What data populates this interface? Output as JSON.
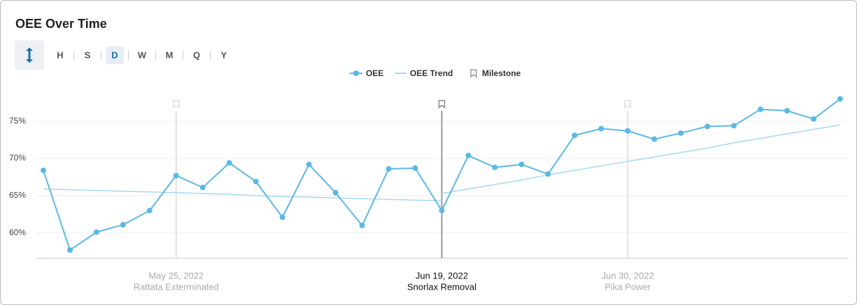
{
  "controls": {
    "timescales": [
      "H",
      "S",
      "D",
      "W",
      "M",
      "Q",
      "Y"
    ],
    "active": "D"
  },
  "chart_data": {
    "type": "line",
    "title": "OEE Over Time",
    "categories": [
      null,
      null,
      null,
      null,
      null,
      "May 25, 2022",
      null,
      null,
      null,
      null,
      null,
      null,
      null,
      null,
      null,
      "Jun 19, 2022",
      null,
      null,
      null,
      null,
      null,
      null,
      "Jun 30, 2022",
      null,
      null,
      null,
      null,
      null,
      null,
      null,
      null
    ],
    "series": [
      {
        "name": "OEE",
        "color": "#5bb8e4",
        "values": [
          68.4,
          57.7,
          60.1,
          61.1,
          63.0,
          67.7,
          66.1,
          69.4,
          66.9,
          62.1,
          69.2,
          65.4,
          61.0,
          68.6,
          68.7,
          63.0,
          70.4,
          68.8,
          69.2,
          67.9,
          73.1,
          74.0,
          73.7,
          72.6,
          73.4,
          74.3,
          74.4,
          76.6,
          76.4,
          75.3,
          78.0
        ]
      },
      {
        "name": "OEE Trend",
        "color": "#a6d9ef",
        "pieces": [
          [
            65.9,
            65.8,
            65.7,
            65.6,
            65.5,
            65.4,
            65.3,
            65.2,
            65.0,
            64.9,
            64.8,
            64.7,
            64.6,
            64.5,
            64.4,
            64.3,
            null,
            null,
            null,
            null,
            null,
            null,
            null,
            null,
            null,
            null,
            null,
            null,
            null,
            null,
            null
          ],
          [
            null,
            null,
            null,
            null,
            null,
            null,
            null,
            null,
            null,
            null,
            null,
            null,
            null,
            null,
            null,
            65.3,
            65.9,
            66.5,
            67.1,
            67.8,
            68.4,
            69.0,
            69.6,
            70.2,
            70.8,
            71.4,
            72.1,
            72.7,
            73.3,
            73.9,
            74.5
          ]
        ]
      }
    ],
    "milestone_legend": "Milestone",
    "milestones": [
      {
        "date": "May 25, 2022",
        "name": "Rattata Exterminated"
      },
      {
        "date": "Jun 19, 2022",
        "name": "Snorlax Removal",
        "selected": true
      },
      {
        "date": "Jun 30, 2022",
        "name": "Pika Power"
      }
    ],
    "ylim": [
      56.6,
      79
    ],
    "yticks": [
      {
        "value": 60,
        "label": "60%"
      },
      {
        "value": 65,
        "label": "65%"
      },
      {
        "value": 70,
        "label": "70%"
      },
      {
        "value": 75,
        "label": "75%"
      }
    ],
    "grid": true
  }
}
